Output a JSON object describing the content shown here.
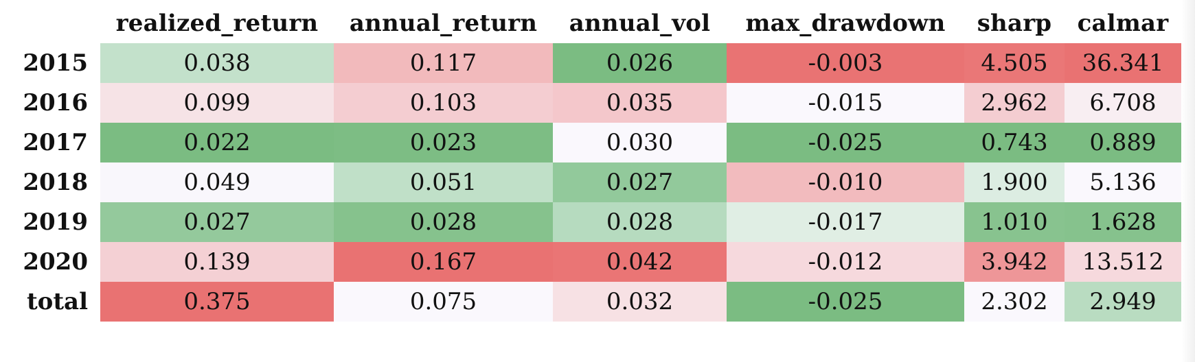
{
  "columns": [
    "realized_return",
    "annual_return",
    "annual_vol",
    "max_drawdown",
    "sharp",
    "calmar"
  ],
  "rows": [
    {
      "label": "2015",
      "cells": [
        {
          "v": "0.038",
          "bg": "#c3e1cb"
        },
        {
          "v": "0.117",
          "bg": "#f2babc"
        },
        {
          "v": "0.026",
          "bg": "#7bbc82"
        },
        {
          "v": "-0.003",
          "bg": "#e97373"
        },
        {
          "v": "4.505",
          "bg": "#ea7777"
        },
        {
          "v": "36.341",
          "bg": "#e97272"
        }
      ]
    },
    {
      "label": "2016",
      "cells": [
        {
          "v": "0.099",
          "bg": "#f6e3e6"
        },
        {
          "v": "0.103",
          "bg": "#f4cdd1"
        },
        {
          "v": "0.035",
          "bg": "#f4c7cb"
        },
        {
          "v": "-0.015",
          "bg": "#faf8fd"
        },
        {
          "v": "2.962",
          "bg": "#f4cdd1"
        },
        {
          "v": "6.708",
          "bg": "#f8eef2"
        }
      ]
    },
    {
      "label": "2017",
      "cells": [
        {
          "v": "0.022",
          "bg": "#7bbc82"
        },
        {
          "v": "0.023",
          "bg": "#7dbd84"
        },
        {
          "v": "0.030",
          "bg": "#faf8fd"
        },
        {
          "v": "-0.025",
          "bg": "#7bbc82"
        },
        {
          "v": "0.743",
          "bg": "#7bbc82"
        },
        {
          "v": "0.889",
          "bg": "#7bbc82"
        }
      ]
    },
    {
      "label": "2018",
      "cells": [
        {
          "v": "0.049",
          "bg": "#f9f7fc"
        },
        {
          "v": "0.051",
          "bg": "#c0e0c8"
        },
        {
          "v": "0.027",
          "bg": "#92c99b"
        },
        {
          "v": "-0.010",
          "bg": "#f2bbbe"
        },
        {
          "v": "1.900",
          "bg": "#dcede2"
        },
        {
          "v": "5.136",
          "bg": "#faf8fd"
        }
      ]
    },
    {
      "label": "2019",
      "cells": [
        {
          "v": "0.027",
          "bg": "#94c99c"
        },
        {
          "v": "0.028",
          "bg": "#86c28d"
        },
        {
          "v": "0.028",
          "bg": "#b6dbbf"
        },
        {
          "v": "-0.017",
          "bg": "#e0eee4"
        },
        {
          "v": "1.010",
          "bg": "#88c38f"
        },
        {
          "v": "1.628",
          "bg": "#86c28d"
        }
      ]
    },
    {
      "label": "2020",
      "cells": [
        {
          "v": "0.139",
          "bg": "#f4d0d4"
        },
        {
          "v": "0.167",
          "bg": "#e97272"
        },
        {
          "v": "0.042",
          "bg": "#ea7575"
        },
        {
          "v": "-0.012",
          "bg": "#f6d9dd"
        },
        {
          "v": "3.942",
          "bg": "#ee9698"
        },
        {
          "v": "13.512",
          "bg": "#f6d9dd"
        }
      ]
    },
    {
      "label": "total",
      "cells": [
        {
          "v": "0.375",
          "bg": "#e97272"
        },
        {
          "v": "0.075",
          "bg": "#faf8fd"
        },
        {
          "v": "0.032",
          "bg": "#f7e1e4"
        },
        {
          "v": "-0.025",
          "bg": "#7bbc82"
        },
        {
          "v": "2.302",
          "bg": "#faf8fd"
        },
        {
          "v": "2.949",
          "bg": "#b9dcc1"
        }
      ]
    }
  ]
}
